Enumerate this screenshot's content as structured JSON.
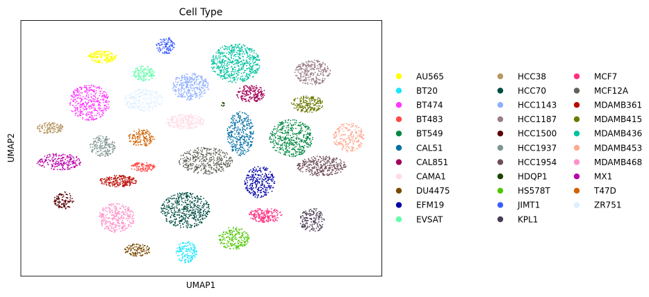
{
  "chart_data": {
    "type": "scatter",
    "title": "Cell Type",
    "xlabel": "UMAP1",
    "ylabel": "UMAP2",
    "xlim": [
      0,
      100
    ],
    "ylim": [
      0,
      100
    ],
    "ticks": "none",
    "grid": false,
    "legend": "right, 3 columns",
    "series": [
      {
        "name": "AU565",
        "color": "#ffff00",
        "x": 22.7,
        "y": 85.8,
        "rx": 4.0,
        "ry": 2.5,
        "n": 170
      },
      {
        "name": "BT20",
        "color": "#1ce6ff",
        "x": 45.9,
        "y": 9.4,
        "rx": 2.9,
        "ry": 4.3,
        "n": 150
      },
      {
        "name": "BT474",
        "color": "#ff34ff",
        "x": 19.0,
        "y": 67.9,
        "rx": 5.7,
        "ry": 7.0,
        "n": 380
      },
      {
        "name": "BT483",
        "color": "#ff4a46",
        "x": 33.8,
        "y": 42.7,
        "rx": 3.4,
        "ry": 1.8,
        "n": 110
      },
      {
        "name": "BT549",
        "color": "#008941",
        "x": 74.9,
        "y": 54.0,
        "rx": 6.0,
        "ry": 7.3,
        "n": 430
      },
      {
        "name": "CAL51",
        "color": "#006fa6",
        "x": 60.8,
        "y": 55.7,
        "rx": 3.7,
        "ry": 8.7,
        "n": 320
      },
      {
        "name": "CAL851",
        "color": "#a30059",
        "x": 63.7,
        "y": 71.4,
        "rx": 4.0,
        "ry": 3.4,
        "n": 190
      },
      {
        "name": "CAMA1",
        "color": "#ffdbe5",
        "x": 45.5,
        "y": 60.4,
        "rx": 5.5,
        "ry": 2.9,
        "n": 230
      },
      {
        "name": "DU4475",
        "color": "#7a4900",
        "x": 32.3,
        "y": 10.2,
        "rx": 3.6,
        "ry": 2.5,
        "n": 120
      },
      {
        "name": "EFM19",
        "color": "#0000a6",
        "x": 66.2,
        "y": 36.8,
        "rx": 4.2,
        "ry": 6.3,
        "n": 260
      },
      {
        "name": "EVSAT",
        "color": "#63ffac",
        "x": 34.1,
        "y": 79.3,
        "rx": 3.1,
        "ry": 3.0,
        "n": 130
      },
      {
        "name": "HCC38",
        "color": "#b79762",
        "x": 8.2,
        "y": 57.9,
        "rx": 3.8,
        "ry": 2.3,
        "n": 130
      },
      {
        "name": "HCC70",
        "color": "#004d43",
        "x": 45.6,
        "y": 25.8,
        "rx": 6.8,
        "ry": 7.0,
        "n": 480
      },
      {
        "name": "HCC1143",
        "color": "#8fb0ff",
        "x": 47.0,
        "y": 74.1,
        "rx": 5.2,
        "ry": 5.3,
        "n": 320
      },
      {
        "name": "HCC1187",
        "color": "#997d87",
        "x": 80.9,
        "y": 79.6,
        "rx": 5.0,
        "ry": 4.9,
        "n": 280
      },
      {
        "name": "HCC1500",
        "color": "#5a0007",
        "x": 11.9,
        "y": 29.6,
        "rx": 2.7,
        "ry": 3.4,
        "n": 110
      },
      {
        "name": "HCC1937",
        "color": "#809693",
        "x": 22.7,
        "y": 50.9,
        "rx": 3.6,
        "ry": 4.1,
        "n": 180
      },
      {
        "name": "HCC1954",
        "color": "#6f4e58",
        "x": 83.3,
        "y": 43.1,
        "rx": 6.8,
        "ry": 3.9,
        "n": 330
      },
      {
        "name": "HDQP1",
        "color": "#1b4400",
        "x": 55.9,
        "y": 67.2,
        "rx": 0.9,
        "ry": 0.9,
        "n": 10
      },
      {
        "name": "HS578T",
        "color": "#4fc601",
        "x": 59.0,
        "y": 14.8,
        "rx": 4.3,
        "ry": 4.4,
        "n": 200
      },
      {
        "name": "JIMT1",
        "color": "#3b5dff",
        "x": 40.1,
        "y": 90.2,
        "rx": 2.6,
        "ry": 3.4,
        "n": 110
      },
      {
        "name": "KPL1",
        "color": "#4a3b53",
        "x": 80.7,
        "y": 21.9,
        "rx": 3.4,
        "ry": 4.8,
        "n": 170
      },
      {
        "name": "MCF7",
        "color": "#ff2f80",
        "x": 67.8,
        "y": 23.8,
        "rx": 4.8,
        "ry": 2.8,
        "n": 200
      },
      {
        "name": "MCF12A",
        "color": "#61615a",
        "x": 51.2,
        "y": 45.1,
        "rx": 7.4,
        "ry": 5.3,
        "n": 380
      },
      {
        "name": "MDAMB361",
        "color": "#ba0900",
        "x": 27.0,
        "y": 37.2,
        "rx": 5.2,
        "ry": 2.3,
        "n": 200
      },
      {
        "name": "MDAMB415",
        "color": "#6b7900",
        "x": 79.4,
        "y": 67.3,
        "rx": 4.5,
        "ry": 3.4,
        "n": 200
      },
      {
        "name": "MDAMB436",
        "color": "#00c2a0",
        "x": 59.5,
        "y": 83.3,
        "rx": 6.8,
        "ry": 7.6,
        "n": 570
      },
      {
        "name": "MDAMB453",
        "color": "#ffaa92",
        "x": 90.8,
        "y": 54.2,
        "rx": 4.3,
        "ry": 5.8,
        "n": 230
      },
      {
        "name": "MDAMB468",
        "color": "#ff90c9",
        "x": 26.5,
        "y": 22.8,
        "rx": 5.0,
        "ry": 5.8,
        "n": 300
      },
      {
        "name": "MX1",
        "color": "#b903aa",
        "x": 10.6,
        "y": 44.7,
        "rx": 6.2,
        "ry": 3.3,
        "n": 210
      },
      {
        "name": "T47D",
        "color": "#d16100",
        "x": 33.4,
        "y": 54.1,
        "rx": 3.7,
        "ry": 3.4,
        "n": 150
      },
      {
        "name": "ZR751",
        "color": "#ddefff",
        "x": 33.9,
        "y": 68.9,
        "rx": 5.5,
        "ry": 4.4,
        "n": 240
      }
    ]
  }
}
